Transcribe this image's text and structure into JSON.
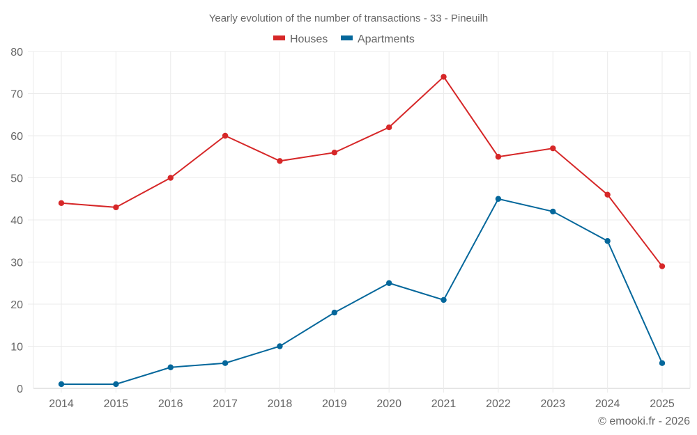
{
  "chart_data": {
    "type": "line",
    "title": "Yearly evolution of the number of transactions - 33 - Pineuilh",
    "xlabel": "",
    "ylabel": "",
    "categories": [
      "2014",
      "2015",
      "2016",
      "2017",
      "2018",
      "2019",
      "2020",
      "2021",
      "2022",
      "2023",
      "2024",
      "2025"
    ],
    "ylim": [
      0,
      80
    ],
    "yticks": [
      0,
      10,
      20,
      30,
      40,
      50,
      60,
      70,
      80
    ],
    "grid": true,
    "legend_position": "top-center",
    "series": [
      {
        "name": "Houses",
        "color": "#d62728",
        "values": [
          44,
          43,
          50,
          60,
          54,
          56,
          62,
          74,
          55,
          57,
          46,
          29
        ]
      },
      {
        "name": "Apartments",
        "color": "#04679b",
        "values": [
          1,
          1,
          5,
          6,
          10,
          18,
          25,
          21,
          45,
          42,
          35,
          6
        ]
      }
    ],
    "credit": "© emooki.fr - 2026"
  }
}
